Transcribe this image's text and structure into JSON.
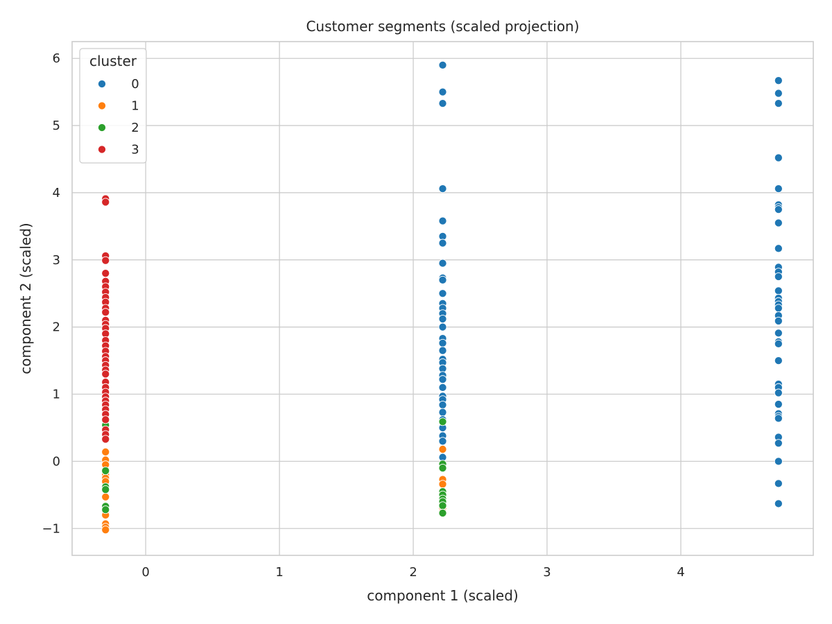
{
  "chart_data": {
    "type": "scatter",
    "title": "Customer segments (scaled projection)",
    "xlabel": "component 1 (scaled)",
    "ylabel": "component 2 (scaled)",
    "xlim": [
      -0.55,
      4.99
    ],
    "ylim": [
      -1.4,
      6.25
    ],
    "xticks": [
      0,
      1,
      2,
      3,
      4
    ],
    "xtick_labels": [
      "0",
      "1",
      "2",
      "3",
      "4"
    ],
    "yticks": [
      -1,
      0,
      1,
      2,
      3,
      4,
      5,
      6
    ],
    "ytick_labels": [
      "−1",
      "0",
      "1",
      "2",
      "3",
      "4",
      "5",
      "6"
    ],
    "grid": true,
    "legend": {
      "title": "cluster",
      "placement": "top-left"
    },
    "series": [
      {
        "name": "0",
        "color": "#1f77b4",
        "points": [
          [
            2.22,
            5.9
          ],
          [
            2.22,
            5.5
          ],
          [
            2.22,
            5.33
          ],
          [
            2.22,
            4.06
          ],
          [
            2.22,
            3.58
          ],
          [
            2.22,
            3.35
          ],
          [
            2.22,
            3.25
          ],
          [
            2.22,
            2.95
          ],
          [
            2.22,
            2.73
          ],
          [
            2.22,
            2.7
          ],
          [
            2.22,
            2.5
          ],
          [
            2.22,
            2.35
          ],
          [
            2.22,
            2.28
          ],
          [
            2.22,
            2.2
          ],
          [
            2.22,
            2.12
          ],
          [
            2.22,
            2.0
          ],
          [
            2.22,
            1.83
          ],
          [
            2.22,
            1.76
          ],
          [
            2.22,
            1.65
          ],
          [
            2.22,
            1.52
          ],
          [
            2.22,
            1.47
          ],
          [
            2.22,
            1.38
          ],
          [
            2.22,
            1.28
          ],
          [
            2.22,
            1.22
          ],
          [
            2.22,
            1.1
          ],
          [
            2.22,
            0.97
          ],
          [
            2.22,
            0.92
          ],
          [
            2.22,
            0.84
          ],
          [
            2.22,
            0.73
          ],
          [
            2.22,
            0.62
          ],
          [
            2.22,
            0.5
          ],
          [
            2.22,
            0.38
          ],
          [
            2.22,
            0.3
          ],
          [
            2.22,
            0.06
          ],
          [
            4.73,
            5.67
          ],
          [
            4.73,
            5.48
          ],
          [
            4.73,
            5.33
          ],
          [
            4.73,
            4.52
          ],
          [
            4.73,
            4.06
          ],
          [
            4.73,
            3.82
          ],
          [
            4.73,
            3.78
          ],
          [
            4.73,
            3.75
          ],
          [
            4.73,
            3.55
          ],
          [
            4.73,
            3.17
          ],
          [
            4.73,
            2.89
          ],
          [
            4.73,
            2.82
          ],
          [
            4.73,
            2.75
          ],
          [
            4.73,
            2.54
          ],
          [
            4.73,
            2.43
          ],
          [
            4.73,
            2.38
          ],
          [
            4.73,
            2.33
          ],
          [
            4.73,
            2.28
          ],
          [
            4.73,
            2.17
          ],
          [
            4.73,
            2.09
          ],
          [
            4.73,
            1.91
          ],
          [
            4.73,
            1.78
          ],
          [
            4.73,
            1.75
          ],
          [
            4.73,
            1.5
          ],
          [
            4.73,
            1.15
          ],
          [
            4.73,
            1.1
          ],
          [
            4.73,
            1.02
          ],
          [
            4.73,
            0.85
          ],
          [
            4.73,
            0.71
          ],
          [
            4.73,
            0.67
          ],
          [
            4.73,
            0.64
          ],
          [
            4.73,
            0.36
          ],
          [
            4.73,
            0.27
          ],
          [
            4.73,
            0.0
          ],
          [
            4.73,
            -0.33
          ],
          [
            4.73,
            -0.63
          ]
        ]
      },
      {
        "name": "1",
        "color": "#ff7f0e",
        "points": [
          [
            -0.3,
            0.14
          ],
          [
            -0.3,
            0.02
          ],
          [
            -0.3,
            -0.05
          ],
          [
            -0.3,
            -0.2
          ],
          [
            -0.3,
            -0.25
          ],
          [
            -0.3,
            -0.3
          ],
          [
            -0.3,
            -0.53
          ],
          [
            -0.3,
            -0.7
          ],
          [
            -0.3,
            -0.77
          ],
          [
            -0.3,
            -0.8
          ],
          [
            -0.3,
            -0.93
          ],
          [
            -0.3,
            -0.98
          ],
          [
            -0.3,
            -1.02
          ],
          [
            2.22,
            0.18
          ],
          [
            2.22,
            -0.27
          ],
          [
            2.22,
            -0.34
          ],
          [
            2.22,
            -0.7
          ],
          [
            2.22,
            -0.75
          ]
        ]
      },
      {
        "name": "2",
        "color": "#2ca02c",
        "points": [
          [
            -0.3,
            0.54
          ],
          [
            -0.3,
            -0.14
          ],
          [
            -0.3,
            -0.38
          ],
          [
            -0.3,
            -0.42
          ],
          [
            -0.3,
            -0.67
          ],
          [
            -0.3,
            -0.72
          ],
          [
            2.22,
            0.59
          ],
          [
            2.22,
            -0.04
          ],
          [
            2.22,
            -0.1
          ],
          [
            2.22,
            -0.45
          ],
          [
            2.22,
            -0.5
          ],
          [
            2.22,
            -0.56
          ],
          [
            2.22,
            -0.6
          ],
          [
            2.22,
            -0.66
          ],
          [
            2.22,
            -0.77
          ]
        ]
      },
      {
        "name": "3",
        "color": "#d62728",
        "points": [
          [
            -0.3,
            3.91
          ],
          [
            -0.3,
            3.86
          ],
          [
            -0.3,
            3.06
          ],
          [
            -0.3,
            2.99
          ],
          [
            -0.3,
            2.8
          ],
          [
            -0.3,
            2.68
          ],
          [
            -0.3,
            2.6
          ],
          [
            -0.3,
            2.52
          ],
          [
            -0.3,
            2.44
          ],
          [
            -0.3,
            2.37
          ],
          [
            -0.3,
            2.28
          ],
          [
            -0.3,
            2.22
          ],
          [
            -0.3,
            2.1
          ],
          [
            -0.3,
            2.04
          ],
          [
            -0.3,
            1.98
          ],
          [
            -0.3,
            1.9
          ],
          [
            -0.3,
            1.8
          ],
          [
            -0.3,
            1.72
          ],
          [
            -0.3,
            1.64
          ],
          [
            -0.3,
            1.56
          ],
          [
            -0.3,
            1.5
          ],
          [
            -0.3,
            1.43
          ],
          [
            -0.3,
            1.36
          ],
          [
            -0.3,
            1.3
          ],
          [
            -0.3,
            1.18
          ],
          [
            -0.3,
            1.1
          ],
          [
            -0.3,
            1.03
          ],
          [
            -0.3,
            0.96
          ],
          [
            -0.3,
            0.9
          ],
          [
            -0.3,
            0.84
          ],
          [
            -0.3,
            0.77
          ],
          [
            -0.3,
            0.7
          ],
          [
            -0.3,
            0.62
          ],
          [
            -0.3,
            0.47
          ],
          [
            -0.3,
            0.4
          ],
          [
            -0.3,
            0.33
          ]
        ]
      }
    ]
  }
}
